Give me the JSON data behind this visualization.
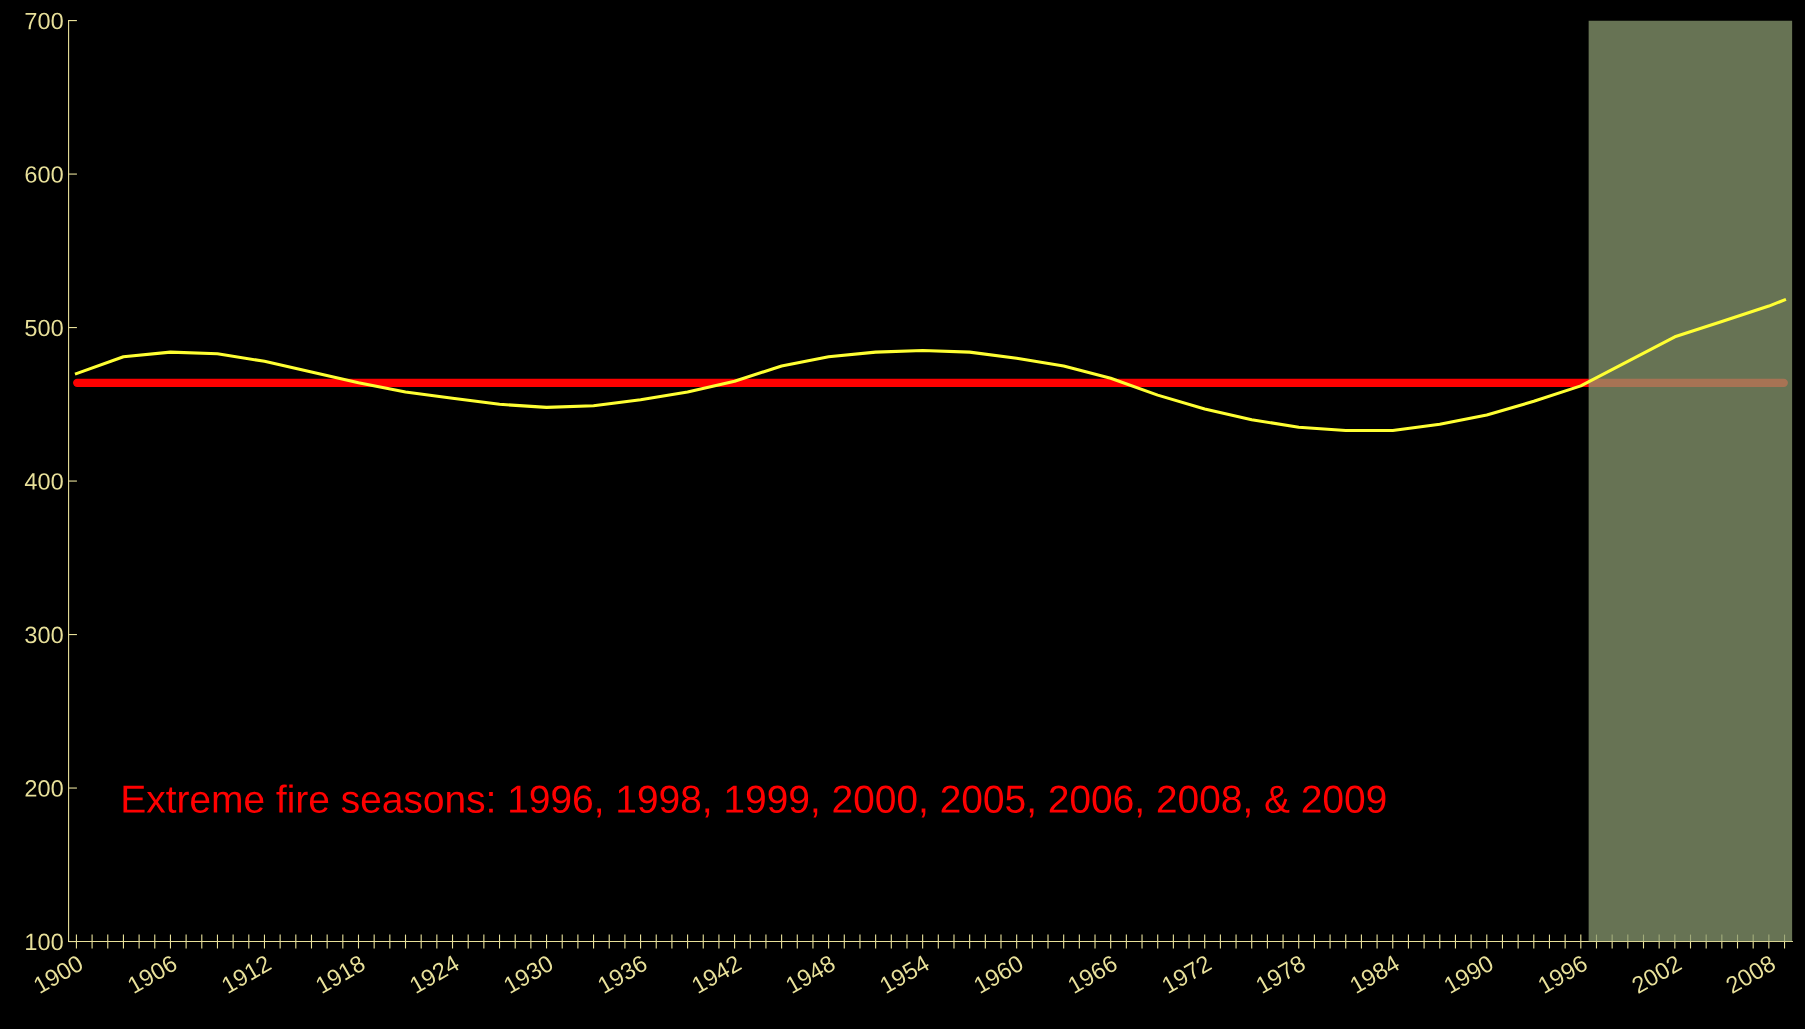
{
  "chart_data": {
    "type": "line",
    "x": [
      1900,
      1903,
      1906,
      1909,
      1912,
      1915,
      1918,
      1921,
      1924,
      1927,
      1930,
      1933,
      1936,
      1939,
      1942,
      1945,
      1948,
      1951,
      1954,
      1957,
      1960,
      1963,
      1966,
      1969,
      1972,
      1975,
      1978,
      1981,
      1984,
      1987,
      1990,
      1993,
      1996,
      1999,
      2002,
      2005,
      2008,
      2009
    ],
    "series": [
      {
        "color": "#ffff33",
        "values": [
          470,
          481,
          484,
          483,
          478,
          471,
          464,
          458,
          454,
          450,
          448,
          449,
          453,
          458,
          465,
          475,
          481,
          484,
          485,
          484,
          480,
          475,
          467,
          456,
          447,
          440,
          435,
          433,
          433,
          437,
          443,
          452,
          462,
          478,
          494,
          504,
          514,
          518
        ]
      }
    ],
    "xlim": [
      1899.5,
      2009.5
    ],
    "ylim": [
      100,
      700
    ],
    "yticks": [
      100,
      200,
      300,
      400,
      500,
      600,
      700
    ],
    "xticks": [
      1900,
      {
        "value": 1901,
        "label": null
      },
      {
        "value": 1902,
        "label": null
      },
      {
        "value": 1903,
        "label": null
      },
      {
        "value": 1904,
        "label": null
      },
      {
        "value": 1905,
        "label": null
      },
      1906,
      {
        "value": 1907,
        "label": null
      },
      {
        "value": 1908,
        "label": null
      },
      {
        "value": 1909,
        "label": null
      },
      {
        "value": 1910,
        "label": null
      },
      {
        "value": 1911,
        "label": null
      },
      1912,
      {
        "value": 1913,
        "label": null
      },
      {
        "value": 1914,
        "label": null
      },
      {
        "value": 1915,
        "label": null
      },
      {
        "value": 1916,
        "label": null
      },
      {
        "value": 1917,
        "label": null
      },
      1918,
      {
        "value": 1919,
        "label": null
      },
      {
        "value": 1920,
        "label": null
      },
      {
        "value": 1921,
        "label": null
      },
      {
        "value": 1922,
        "label": null
      },
      {
        "value": 1923,
        "label": null
      },
      1924,
      {
        "value": 1925,
        "label": null
      },
      {
        "value": 1926,
        "label": null
      },
      {
        "value": 1927,
        "label": null
      },
      {
        "value": 1928,
        "label": null
      },
      {
        "value": 1929,
        "label": null
      },
      1930,
      {
        "value": 1931,
        "label": null
      },
      {
        "value": 1932,
        "label": null
      },
      {
        "value": 1933,
        "label": null
      },
      {
        "value": 1934,
        "label": null
      },
      {
        "value": 1935,
        "label": null
      },
      1936,
      {
        "value": 1937,
        "label": null
      },
      {
        "value": 1938,
        "label": null
      },
      {
        "value": 1939,
        "label": null
      },
      {
        "value": 1940,
        "label": null
      },
      {
        "value": 1941,
        "label": null
      },
      1942,
      {
        "value": 1943,
        "label": null
      },
      {
        "value": 1944,
        "label": null
      },
      {
        "value": 1945,
        "label": null
      },
      {
        "value": 1946,
        "label": null
      },
      {
        "value": 1947,
        "label": null
      },
      1948,
      {
        "value": 1949,
        "label": null
      },
      {
        "value": 1950,
        "label": null
      },
      {
        "value": 1951,
        "label": null
      },
      {
        "value": 1952,
        "label": null
      },
      {
        "value": 1953,
        "label": null
      },
      1954,
      {
        "value": 1955,
        "label": null
      },
      {
        "value": 1956,
        "label": null
      },
      {
        "value": 1957,
        "label": null
      },
      {
        "value": 1958,
        "label": null
      },
      {
        "value": 1959,
        "label": null
      },
      1960,
      {
        "value": 1961,
        "label": null
      },
      {
        "value": 1962,
        "label": null
      },
      {
        "value": 1963,
        "label": null
      },
      {
        "value": 1964,
        "label": null
      },
      {
        "value": 1965,
        "label": null
      },
      1966,
      {
        "value": 1967,
        "label": null
      },
      {
        "value": 1968,
        "label": null
      },
      {
        "value": 1969,
        "label": null
      },
      {
        "value": 1970,
        "label": null
      },
      {
        "value": 1971,
        "label": null
      },
      1972,
      {
        "value": 1973,
        "label": null
      },
      {
        "value": 1974,
        "label": null
      },
      {
        "value": 1975,
        "label": null
      },
      {
        "value": 1976,
        "label": null
      },
      {
        "value": 1977,
        "label": null
      },
      1978,
      {
        "value": 1979,
        "label": null
      },
      {
        "value": 1980,
        "label": null
      },
      {
        "value": 1981,
        "label": null
      },
      {
        "value": 1982,
        "label": null
      },
      {
        "value": 1983,
        "label": null
      },
      1984,
      {
        "value": 1985,
        "label": null
      },
      {
        "value": 1986,
        "label": null
      },
      {
        "value": 1987,
        "label": null
      },
      {
        "value": 1988,
        "label": null
      },
      {
        "value": 1989,
        "label": null
      },
      1990,
      {
        "value": 1991,
        "label": null
      },
      {
        "value": 1992,
        "label": null
      },
      {
        "value": 1993,
        "label": null
      },
      {
        "value": 1994,
        "label": null
      },
      {
        "value": 1995,
        "label": null
      },
      1996,
      {
        "value": 1997,
        "label": null
      },
      {
        "value": 1998,
        "label": null
      },
      {
        "value": 1999,
        "label": null
      },
      {
        "value": 2000,
        "label": null
      },
      {
        "value": 2001,
        "label": null
      },
      2002,
      {
        "value": 2003,
        "label": null
      },
      {
        "value": 2004,
        "label": null
      },
      {
        "value": 2005,
        "label": null
      },
      {
        "value": 2006,
        "label": null
      },
      {
        "value": 2007,
        "label": null
      },
      2008,
      {
        "value": 2009,
        "label": null
      }
    ],
    "ref_lines": [
      {
        "axis": "y",
        "value": 464,
        "color": "#ff0000"
      }
    ],
    "bands": [
      {
        "axis": "x",
        "from": 1996.5,
        "to": 2009.5,
        "color": "#8a9a70"
      }
    ],
    "annotations": [
      "Extreme fire seasons: 1996, 1998, 1999, 2000, 2005, 2006, 2008, & 2009"
    ],
    "grid": false,
    "legend": false,
    "marker": "none",
    "line_style": "solid"
  }
}
